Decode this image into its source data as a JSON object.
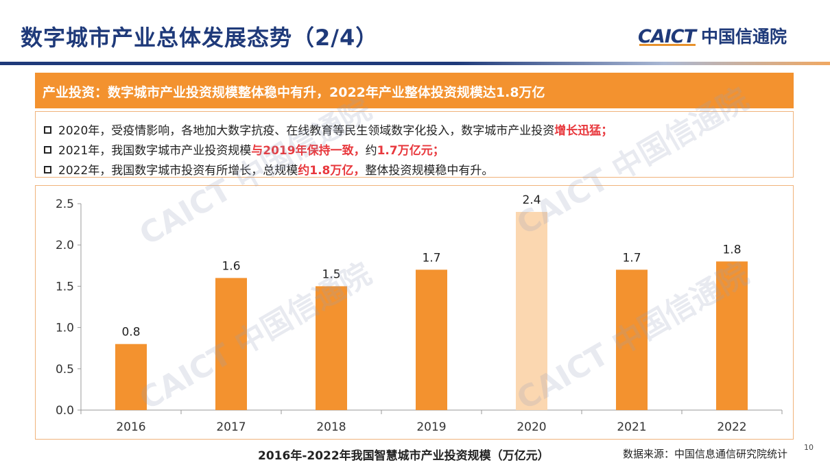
{
  "header": {
    "title": "数字城市产业总体发展态势（2/4）",
    "logo_en": "CAICT",
    "logo_cn": "中国信通院"
  },
  "banner": {
    "text": "产业投资：数字城市产业投资规模整体稳中有升，2022年产业整体投资规模达1.8万亿"
  },
  "bullets": [
    {
      "pre": "2020年，受疫情影响，各地加大数字抗疫、在线教育等民生领域数字化投入，数字城市产业投资",
      "highlight": "增长迅猛；",
      "post": ""
    },
    {
      "pre": "2021年，我国数字城市产业投资规模",
      "highlight": "与2019年保持一致，",
      "post": "约1.7万亿元；",
      "post_bold_red": true
    },
    {
      "pre": "2022年，我国数字城市投资有所增长，总规模",
      "highlight": "约1.8万亿，",
      "post": "整体投资规模稳中有升。"
    }
  ],
  "chart_data": {
    "type": "bar",
    "categories": [
      "2016",
      "2017",
      "2018",
      "2019",
      "2020",
      "2021",
      "2022"
    ],
    "values": [
      0.8,
      1.6,
      1.5,
      1.7,
      2.4,
      1.7,
      1.8
    ],
    "highlight_index": 4,
    "ylim": [
      0,
      2.5
    ],
    "yticks": [
      "0.0",
      "0.5",
      "1.0",
      "1.5",
      "2.0",
      "2.5"
    ],
    "ytick_values": [
      0,
      0.5,
      1.0,
      1.5,
      2.0,
      2.5
    ],
    "data_labels": [
      "0.8",
      "1.6",
      "1.5",
      "1.7",
      "2.4",
      "1.7",
      "1.8"
    ],
    "bar_color": "#f3922f",
    "highlight_color": "#fbd7b0",
    "grid": false,
    "legend": "none"
  },
  "footer": {
    "caption": "2016年-2022年我国智慧城市产业投资规模（万亿元）",
    "source": "数据来源：中国信息通信研究院统计",
    "page_number": "10"
  },
  "watermark": {
    "text": "CAICT 中国信通院"
  }
}
